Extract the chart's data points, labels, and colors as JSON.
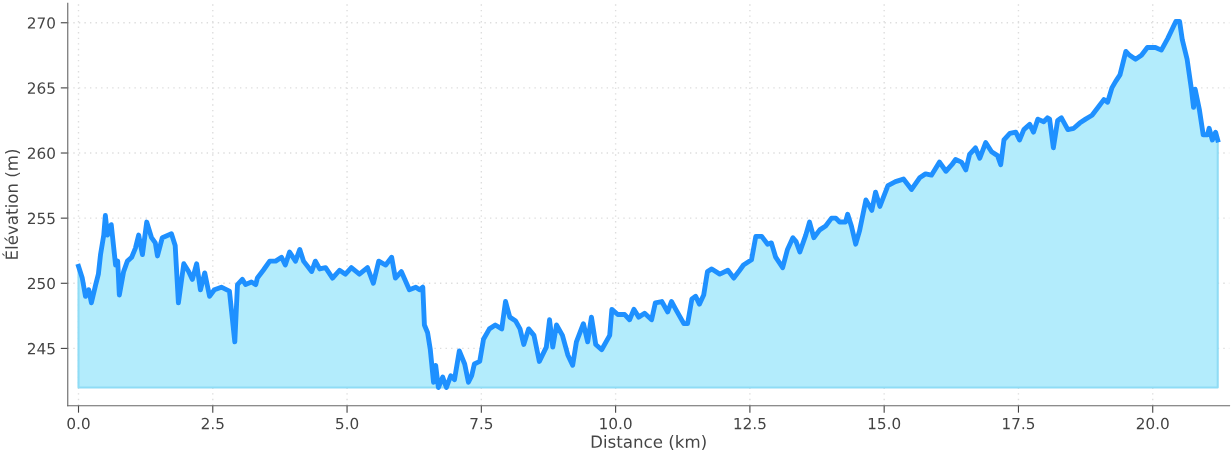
{
  "chart_data": {
    "type": "area",
    "xlabel": "Distance (km)",
    "ylabel": "Élévation (m)",
    "xlim": [
      -0.2,
      21.43
    ],
    "ylim": [
      240.6,
      271.5
    ],
    "xticks": [
      {
        "value": 0,
        "label": "0.0"
      },
      {
        "value": 2.5,
        "label": "2.5"
      },
      {
        "value": 5,
        "label": "5.0"
      },
      {
        "value": 7.5,
        "label": "7.5"
      },
      {
        "value": 10,
        "label": "10.0"
      },
      {
        "value": 12.5,
        "label": "12.5"
      },
      {
        "value": 15,
        "label": "15.0"
      },
      {
        "value": 17.5,
        "label": "17.5"
      },
      {
        "value": 20,
        "label": "20.0"
      }
    ],
    "yticks": [
      245,
      250,
      255,
      260,
      265,
      270
    ],
    "grid": true,
    "legend": false,
    "series": [
      {
        "color": "#1e90ff",
        "x": [
          0.0,
          0.07,
          0.13,
          0.19,
          0.24,
          0.32,
          0.37,
          0.41,
          0.47,
          0.5,
          0.54,
          0.61,
          0.69,
          0.73,
          0.76,
          0.84,
          0.91,
          0.99,
          1.06,
          1.12,
          1.19,
          1.27,
          1.36,
          1.43,
          1.47,
          1.56,
          1.73,
          1.8,
          1.86,
          1.96,
          2.05,
          2.12,
          2.2,
          2.27,
          2.35,
          2.44,
          2.53,
          2.66,
          2.81,
          2.91,
          2.96,
          3.05,
          3.11,
          3.22,
          3.3,
          3.33,
          3.44,
          3.56,
          3.67,
          3.78,
          3.85,
          3.93,
          4.04,
          4.12,
          4.19,
          4.34,
          4.41,
          4.49,
          4.6,
          4.73,
          4.86,
          4.97,
          5.08,
          5.23,
          5.38,
          5.49,
          5.59,
          5.72,
          5.83,
          5.9,
          6.01,
          6.16,
          6.28,
          6.35,
          6.41,
          6.44,
          6.5,
          6.55,
          6.61,
          6.65,
          6.7,
          6.78,
          6.85,
          6.93,
          7.0,
          7.09,
          7.19,
          7.26,
          7.32,
          7.37,
          7.47,
          7.54,
          7.65,
          7.76,
          7.88,
          7.95,
          8.03,
          8.14,
          8.22,
          8.29,
          8.38,
          8.48,
          8.58,
          8.71,
          8.77,
          8.83,
          8.9,
          9.01,
          9.11,
          9.2,
          9.27,
          9.4,
          9.48,
          9.55,
          9.63,
          9.74,
          9.89,
          9.93,
          10.04,
          10.17,
          10.26,
          10.34,
          10.43,
          10.54,
          10.67,
          10.74,
          10.86,
          10.97,
          11.04,
          11.12,
          11.27,
          11.34,
          11.42,
          11.49,
          11.56,
          11.64,
          11.71,
          11.79,
          11.94,
          12.09,
          12.2,
          12.31,
          12.38,
          12.53,
          12.61,
          12.72,
          12.83,
          12.9,
          12.98,
          13.11,
          13.2,
          13.3,
          13.36,
          13.43,
          13.54,
          13.61,
          13.69,
          13.8,
          13.91,
          14.02,
          14.1,
          14.17,
          14.28,
          14.32,
          14.39,
          14.47,
          14.54,
          14.66,
          14.77,
          14.84,
          14.92,
          15.07,
          15.21,
          15.36,
          15.51,
          15.66,
          15.77,
          15.88,
          16.03,
          16.15,
          16.26,
          16.33,
          16.44,
          16.52,
          16.59,
          16.7,
          16.78,
          16.89,
          17.0,
          17.11,
          17.17,
          17.23,
          17.34,
          17.45,
          17.52,
          17.6,
          17.71,
          17.78,
          17.86,
          17.97,
          18.04,
          18.08,
          18.15,
          18.23,
          18.3,
          18.42,
          18.53,
          18.64,
          18.75,
          18.87,
          18.98,
          19.09,
          19.16,
          19.24,
          19.31,
          19.39,
          19.5,
          19.57,
          19.68,
          19.79,
          19.9,
          20.05,
          20.16,
          20.28,
          20.43,
          20.5,
          20.55,
          20.64,
          20.72,
          20.76,
          20.79,
          20.87,
          20.94,
          21.02,
          21.05,
          21.11,
          21.17,
          21.21
        ],
        "values": [
          251.3,
          250.4,
          249.0,
          249.5,
          248.5,
          249.9,
          250.7,
          252.2,
          253.7,
          255.2,
          253.7,
          254.5,
          251.4,
          251.7,
          249.1,
          250.9,
          251.7,
          252.0,
          252.7,
          253.7,
          252.2,
          254.7,
          253.5,
          253.1,
          252.1,
          253.5,
          253.8,
          252.9,
          248.5,
          251.5,
          250.9,
          250.3,
          251.5,
          249.5,
          250.8,
          249.0,
          249.5,
          249.7,
          249.4,
          245.5,
          249.9,
          250.3,
          249.9,
          250.1,
          249.9,
          250.4,
          251.0,
          251.7,
          251.7,
          252.0,
          251.4,
          252.4,
          251.7,
          252.6,
          251.7,
          250.9,
          251.7,
          251.1,
          251.2,
          250.4,
          251.0,
          250.7,
          251.2,
          250.7,
          251.2,
          250.0,
          251.7,
          251.4,
          252.0,
          250.4,
          250.9,
          249.5,
          249.7,
          249.5,
          249.7,
          246.8,
          246.2,
          244.9,
          242.4,
          243.7,
          242.0,
          242.8,
          242.0,
          242.9,
          242.6,
          244.8,
          243.8,
          242.4,
          242.9,
          243.8,
          244.0,
          245.7,
          246.5,
          246.8,
          246.5,
          248.6,
          247.4,
          247.1,
          246.5,
          245.3,
          246.5,
          246.0,
          244.0,
          245.1,
          247.2,
          245.1,
          246.8,
          246.0,
          244.5,
          243.7,
          245.5,
          246.9,
          245.5,
          247.4,
          245.3,
          244.9,
          246.0,
          248.0,
          247.6,
          247.6,
          247.2,
          248.0,
          247.4,
          247.7,
          247.2,
          248.5,
          248.6,
          247.8,
          248.6,
          248.0,
          246.9,
          246.9,
          248.8,
          249.0,
          248.4,
          249.1,
          250.9,
          251.1,
          250.7,
          251.0,
          250.4,
          251.0,
          251.4,
          251.8,
          253.6,
          253.6,
          253.0,
          253.1,
          252.0,
          251.2,
          252.6,
          253.5,
          253.2,
          252.4,
          253.7,
          254.7,
          253.5,
          254.1,
          254.4,
          255.0,
          255.0,
          254.7,
          254.7,
          255.3,
          254.4,
          253.0,
          254.0,
          256.4,
          255.6,
          257.0,
          255.9,
          257.5,
          257.8,
          258.0,
          257.2,
          258.1,
          258.4,
          258.3,
          259.3,
          258.6,
          259.1,
          259.5,
          259.3,
          258.7,
          259.9,
          260.4,
          259.6,
          260.8,
          260.1,
          259.8,
          259.1,
          261.0,
          261.5,
          261.6,
          261.0,
          261.8,
          262.2,
          261.6,
          262.6,
          262.4,
          262.7,
          262.6,
          260.4,
          262.5,
          262.7,
          261.8,
          261.9,
          262.3,
          262.6,
          262.9,
          263.5,
          264.1,
          263.9,
          265.0,
          265.5,
          266.0,
          267.8,
          267.5,
          267.2,
          267.5,
          268.1,
          268.1,
          267.9,
          268.8,
          270.1,
          270.1,
          268.7,
          267.2,
          264.9,
          263.5,
          264.9,
          263.3,
          261.4,
          261.4,
          261.9,
          261.0,
          261.6,
          261.0
        ]
      }
    ]
  }
}
